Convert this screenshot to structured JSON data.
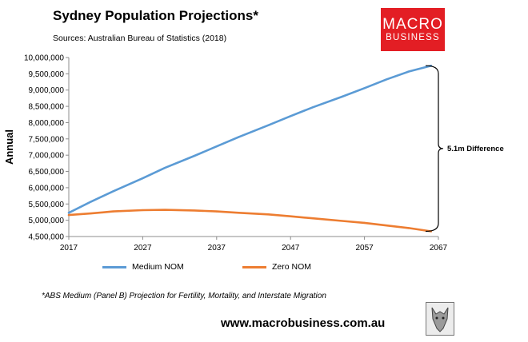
{
  "title": "Sydney Population Projections*",
  "source": "Sources: Australian Bureau of Statistics (2018)",
  "logo": {
    "line1": "MACRO",
    "line2": "BUSINESS",
    "color": "#e31e24"
  },
  "footnote": "*ABS Medium (Panel B) Projection for Fertility, Mortality, and Interstate Migration",
  "website": "www.macrobusiness.com.au",
  "chart_data": {
    "type": "line",
    "ylabel": "Annual",
    "xlabel": "",
    "xlim": [
      2017,
      2067
    ],
    "ylim": [
      4500000,
      10000000
    ],
    "x_ticks": [
      "2017",
      "2027",
      "2037",
      "2047",
      "2057",
      "2067"
    ],
    "y_ticks": [
      "10,000,000",
      "9,500,000",
      "9,000,000",
      "8,500,000",
      "8,000,000",
      "7,500,000",
      "7,000,000",
      "6,500,000",
      "6,000,000",
      "5,500,000",
      "5,000,000",
      "4,500,000"
    ],
    "series": [
      {
        "name": "Medium NOM",
        "color": "#5b9bd5",
        "x": [
          2017,
          2020,
          2023,
          2027,
          2030,
          2034,
          2037,
          2040,
          2044,
          2047,
          2050,
          2054,
          2057,
          2060,
          2063,
          2066
        ],
        "y": [
          5230000,
          5570000,
          5890000,
          6290000,
          6610000,
          6980000,
          7270000,
          7560000,
          7920000,
          8200000,
          8470000,
          8800000,
          9060000,
          9330000,
          9570000,
          9750000
        ]
      },
      {
        "name": "Zero NOM",
        "color": "#ed7d31",
        "x": [
          2017,
          2020,
          2023,
          2027,
          2030,
          2034,
          2037,
          2040,
          2044,
          2047,
          2050,
          2054,
          2057,
          2060,
          2063,
          2066
        ],
        "y": [
          5160000,
          5210000,
          5270000,
          5310000,
          5320000,
          5300000,
          5270000,
          5230000,
          5180000,
          5120000,
          5060000,
          4980000,
          4920000,
          4840000,
          4760000,
          4660000
        ]
      }
    ],
    "annotation": "5.1m Difference"
  }
}
